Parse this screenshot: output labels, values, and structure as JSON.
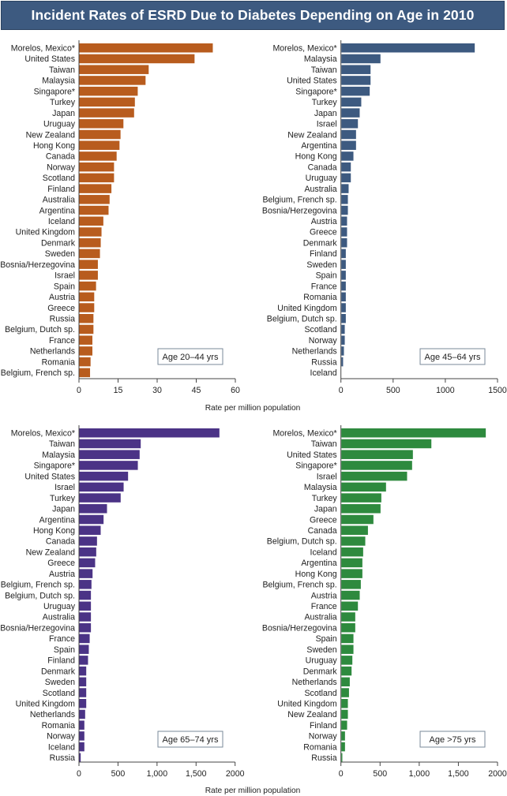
{
  "title": "Incident Rates of ESRD Due to Diabetes Depending on Age in 2010",
  "chart_data": [
    {
      "type": "bar",
      "orientation": "horizontal",
      "panel_label": "Age 20–44 yrs",
      "color": "#b85c1e",
      "xlabel": "",
      "xlim": [
        0,
        60
      ],
      "xticks": [
        0,
        15,
        30,
        45,
        60
      ],
      "xtick_labels": [
        "0",
        "15",
        "30",
        "45",
        "60"
      ],
      "categories": [
        "Morelos, Mexico*",
        "United States",
        "Taiwan",
        "Malaysia",
        "Singapore*",
        "Turkey",
        "Japan",
        "Uruguay",
        "New Zealand",
        "Hong Kong",
        "Canada",
        "Norway",
        "Scotland",
        "Finland",
        "Australia",
        "Argentina",
        "Iceland",
        "United Kingdom",
        "Denmark",
        "Sweden",
        "Bosnia/Herzegovina",
        "Israel",
        "Spain",
        "Austria",
        "Greece",
        "Russia",
        "Belgium, Dutch sp.",
        "France",
        "Netherlands",
        "Romania",
        "Belgium, French sp."
      ],
      "values": [
        51.2,
        44.2,
        26.6,
        25.4,
        22.4,
        21.3,
        21.0,
        16.9,
        15.8,
        15.4,
        14.3,
        13.3,
        13.3,
        12.3,
        11.6,
        11.2,
        9.2,
        8.5,
        8.2,
        7.9,
        7.1,
        7.1,
        6.4,
        5.7,
        5.7,
        5.4,
        5.4,
        5.0,
        5.0,
        4.3,
        4.1
      ]
    },
    {
      "type": "bar",
      "orientation": "horizontal",
      "panel_label": "Age 45–64 yrs",
      "color": "#3d5a80",
      "xlabel": "",
      "xlim": [
        0,
        1500
      ],
      "xticks": [
        0,
        500,
        1000,
        1500
      ],
      "xtick_labels": [
        "0",
        "500",
        "1000",
        "1500"
      ],
      "categories": [
        "Morelos, Mexico*",
        "Malaysia",
        "Taiwan",
        "United States",
        "Singapore*",
        "Turkey",
        "Japan",
        "Israel",
        "New Zealand",
        "Argentina",
        "Hong Kong",
        "Canada",
        "Uruguay",
        "Australia",
        "Belgium, French sp.",
        "Bosnia/Herzegovina",
        "Austria",
        "Greece",
        "Denmark",
        "Finland",
        "Sweden",
        "Spain",
        "France",
        "Romania",
        "United Kingdom",
        "Belgium, Dutch sp.",
        "Scotland",
        "Norway",
        "Netherlands",
        "Russia",
        "Iceland"
      ],
      "values": [
        1278,
        375,
        280,
        280,
        272,
        191,
        176,
        159,
        141,
        141,
        116,
        91,
        91,
        70,
        63,
        63,
        55,
        55,
        55,
        43,
        43,
        43,
        43,
        43,
        43,
        43,
        33,
        33,
        25,
        17,
        0
      ]
    },
    {
      "type": "bar",
      "orientation": "horizontal",
      "panel_label": "Age 65–74 yrs",
      "color": "#4b3386",
      "xlabel": "",
      "xlim": [
        0,
        2000
      ],
      "xticks": [
        0,
        500,
        1000,
        1500,
        2000
      ],
      "xtick_labels": [
        "0",
        "500",
        "1,000",
        "1,500",
        "2000"
      ],
      "categories": [
        "Morelos, Mexico*",
        "Taiwan",
        "Malaysia",
        "Singapore*",
        "United States",
        "Israel",
        "Turkey",
        "Japan",
        "Argentina",
        "Hong Kong",
        "Canada",
        "New Zealand",
        "Greece",
        "Austria",
        "Belgium, French sp.",
        "Belgium, Dutch sp.",
        "Uruguay",
        "Australia",
        "Bosnia/Herzegovina",
        "France",
        "Spain",
        "Finland",
        "Denmark",
        "Sweden",
        "Scotland",
        "United Kingdom",
        "Netherlands",
        "Romania",
        "Norway",
        "Iceland",
        "Russia"
      ],
      "values": [
        1794,
        786,
        772,
        749,
        624,
        567,
        529,
        354,
        310,
        273,
        226,
        216,
        202,
        169,
        155,
        148,
        148,
        148,
        148,
        132,
        121,
        111,
        88,
        88,
        88,
        88,
        74,
        64,
        64,
        64,
        17
      ]
    },
    {
      "type": "bar",
      "orientation": "horizontal",
      "panel_label": "Age >75 yrs",
      "color": "#2e8a3e",
      "xlabel": "",
      "xlim": [
        0,
        2000
      ],
      "xticks": [
        0,
        500,
        1000,
        1500,
        2000
      ],
      "xtick_labels": [
        "0",
        "500",
        "1,000",
        "1,500",
        "2000"
      ],
      "categories": [
        "Morelos, Mexico*",
        "Taiwan",
        "United States",
        "Singapore*",
        "Israel",
        "Malaysia",
        "Turkey",
        "Japan",
        "Greece",
        "Canada",
        "Belgium, Dutch sp.",
        "Iceland",
        "Argentina",
        "Hong Kong",
        "Belgium, French sp.",
        "Austria",
        "France",
        "Australia",
        "Bosnia/Herzegovina",
        "Spain",
        "Sweden",
        "Uruguay",
        "Denmark",
        "Netherlands",
        "Scotland",
        "United Kingdom",
        "New Zealand",
        "Finland",
        "Norway",
        "Romania",
        "Russia"
      ],
      "values": [
        1845,
        1150,
        914,
        904,
        840,
        571,
        511,
        501,
        410,
        340,
        306,
        279,
        269,
        269,
        249,
        235,
        212,
        178,
        178,
        155,
        155,
        141,
        131,
        108,
        98,
        84,
        84,
        74,
        47,
        47,
        13
      ]
    }
  ],
  "shared_xlabel_top": "Rate per million population",
  "shared_xlabel_bottom": "Rate per million population"
}
